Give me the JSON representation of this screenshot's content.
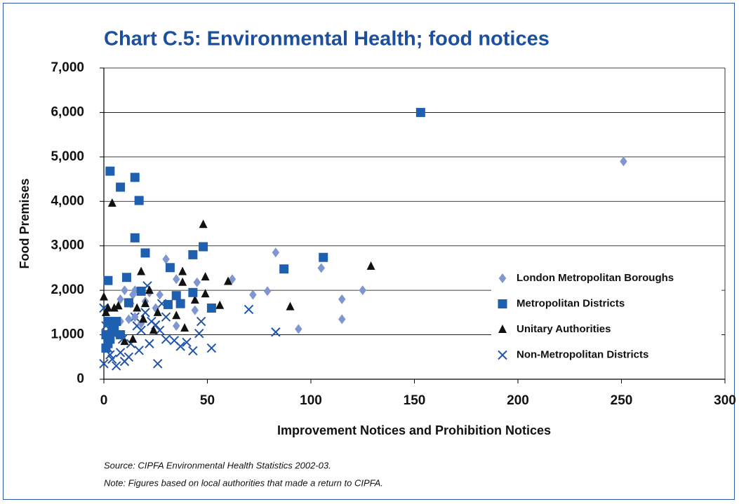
{
  "chart_data": {
    "type": "scatter",
    "title": "Chart C.5: Environmental Health; food notices",
    "x_label": "Improvement Notices and Prohibition Notices",
    "y_label": "Food Premises",
    "source": "Source: CIPFA Environmental Health Statistics 2002-03.",
    "note": "Note: Figures based on local authorities that made a return to CIPFA.",
    "xlim": [
      0,
      300
    ],
    "xticks": [
      0,
      50,
      100,
      150,
      200,
      250,
      300
    ],
    "ylim": [
      0,
      7000
    ],
    "yticks": [
      0,
      {
        "value": 1000,
        "label": "1,000"
      },
      {
        "value": 2000,
        "label": "2,000"
      },
      {
        "value": 3000,
        "label": "3,000"
      },
      {
        "value": 4000,
        "label": "4,000"
      },
      {
        "value": 5000,
        "label": "5,000"
      },
      {
        "value": 6000,
        "label": "6,000"
      },
      {
        "value": 7000,
        "label": "7,000"
      }
    ],
    "grid": true,
    "legend": "right",
    "series": [
      {
        "name": "London Metropolitan Boroughs",
        "color": "#7f96d0",
        "marker": "diamond",
        "x": [
          251,
          83,
          105,
          125,
          115,
          115,
          94,
          79,
          72,
          62,
          45,
          44,
          35,
          35,
          30,
          27,
          25,
          20,
          15,
          14,
          10,
          8,
          12,
          8,
          15,
          5,
          3,
          18,
          22,
          13
        ],
        "values": [
          4900,
          2850,
          2500,
          2000,
          1800,
          1350,
          1130,
          1980,
          1900,
          2250,
          2180,
          1550,
          2250,
          1200,
          2700,
          1900,
          1600,
          1750,
          2000,
          1900,
          2000,
          1800,
          1350,
          1300,
          1400,
          1200,
          1100,
          1250,
          1950,
          1700
        ]
      },
      {
        "name": "Metropolitan Districts",
        "color": "#1f5fb0",
        "marker": "square",
        "x": [
          153,
          3,
          8,
          15,
          17,
          15,
          20,
          43,
          48,
          32,
          87,
          106,
          2,
          11,
          18,
          43,
          37,
          52,
          31,
          35,
          12,
          2,
          4,
          1,
          3,
          5,
          2,
          1,
          6,
          8
        ],
        "values": [
          6000,
          4680,
          4320,
          4540,
          4020,
          3180,
          2840,
          2800,
          2980,
          2510,
          2480,
          2740,
          2220,
          2290,
          1980,
          1950,
          1700,
          1600,
          1680,
          1880,
          1720,
          1300,
          1200,
          1000,
          900,
          1100,
          800,
          700,
          1300,
          1000
        ]
      },
      {
        "name": "Unitary Authorities",
        "color": "#111111",
        "marker": "triangle",
        "x": [
          4,
          48,
          129,
          60,
          18,
          38,
          38,
          49,
          49,
          56,
          90,
          44,
          35,
          20,
          22,
          19,
          26,
          0,
          2,
          16,
          10,
          14,
          39,
          24,
          5,
          7,
          1
        ],
        "values": [
          3960,
          3480,
          2540,
          2200,
          2420,
          2420,
          2180,
          2300,
          1920,
          1660,
          1630,
          1780,
          1430,
          1700,
          2000,
          1350,
          1500,
          1850,
          1600,
          1600,
          850,
          900,
          1150,
          1100,
          1600,
          1650,
          1500
        ]
      },
      {
        "name": "Non-Metropolitan Districts",
        "color": "#2255a8",
        "marker": "cross",
        "x": [
          70,
          83,
          52,
          47,
          46,
          43,
          40,
          37,
          34,
          30,
          26,
          27,
          21,
          25,
          20,
          18,
          17,
          22,
          15,
          12,
          10,
          8,
          6,
          4,
          2,
          0,
          0,
          5,
          9,
          13,
          16,
          28,
          23,
          30,
          3,
          1
        ],
        "values": [
          1570,
          1060,
          700,
          1300,
          1030,
          640,
          830,
          740,
          870,
          1400,
          350,
          1100,
          2100,
          1220,
          1500,
          1100,
          650,
          800,
          1400,
          500,
          400,
          600,
          300,
          450,
          700,
          350,
          1600,
          1000,
          900,
          800,
          1200,
          1700,
          1300,
          900,
          550,
          1200
        ]
      }
    ]
  }
}
